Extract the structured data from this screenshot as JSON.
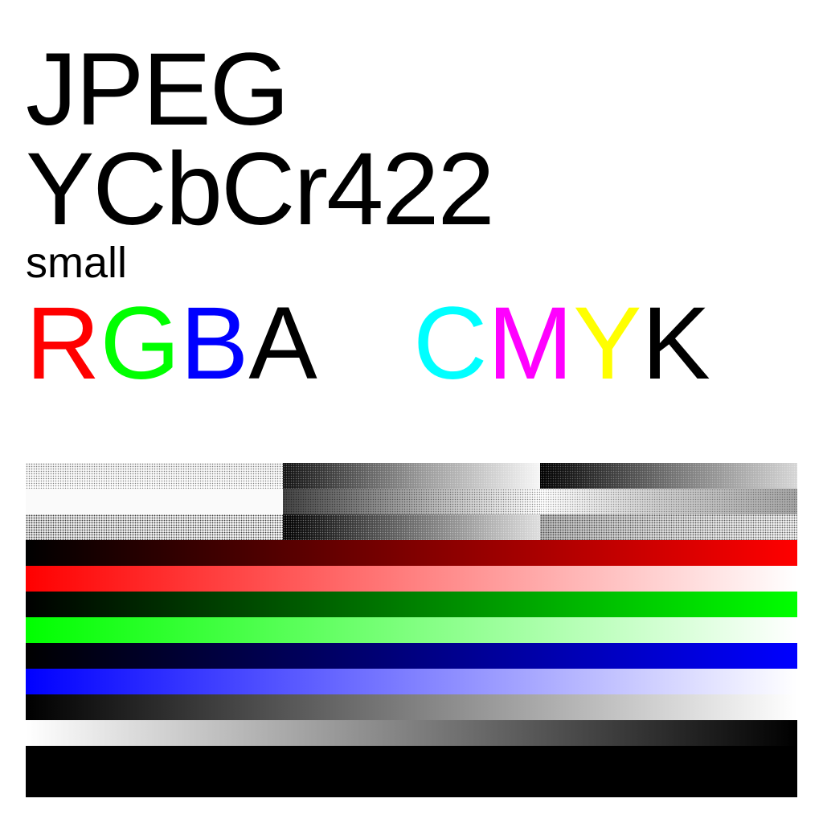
{
  "title": {
    "line1": "JPEG",
    "line2": "YCbCr422",
    "small": "small"
  },
  "channels": {
    "rgba": [
      {
        "letter": "R",
        "color": "#ff0000"
      },
      {
        "letter": "G",
        "color": "#00ff00"
      },
      {
        "letter": "B",
        "color": "#0000ff"
      },
      {
        "letter": "A",
        "color": "#000000"
      }
    ],
    "cmyk": [
      {
        "letter": "C",
        "color": "#00ffff"
      },
      {
        "letter": "M",
        "color": "#ff00ff"
      },
      {
        "letter": "Y",
        "color": "#ffff00"
      },
      {
        "letter": "K",
        "color": "#000000"
      }
    ]
  },
  "gradients": [
    {
      "name": "black-to-red",
      "from": "#000000",
      "to": "#ff0000"
    },
    {
      "name": "red-to-white",
      "from": "#ff0000",
      "to": "#ffffff"
    },
    {
      "name": "black-to-green",
      "from": "#000000",
      "to": "#00ff00"
    },
    {
      "name": "green-to-white",
      "from": "#00ff00",
      "to": "#ffffff"
    },
    {
      "name": "black-to-blue",
      "from": "#000000",
      "to": "#0000ff"
    },
    {
      "name": "blue-to-white",
      "from": "#0000ff",
      "to": "#ffffff"
    },
    {
      "name": "black-to-white",
      "from": "#000000",
      "to": "#ffffff"
    },
    {
      "name": "white-to-black",
      "from": "#ffffff",
      "to": "#000000"
    },
    {
      "name": "solid-black",
      "from": "#000000",
      "to": "#000000"
    }
  ]
}
